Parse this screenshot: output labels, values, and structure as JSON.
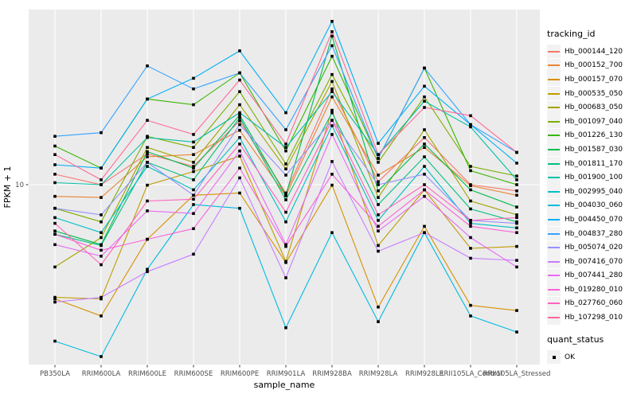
{
  "figure": {
    "x_axis": {
      "label": "sample_name"
    },
    "y_axis": {
      "label": "FPKM + 1",
      "tick_labels": [
        "10"
      ]
    }
  },
  "legend": {
    "tracking_title": "tracking_id",
    "quant_title": "quant_status",
    "quant_items": [
      "OK"
    ]
  },
  "colors": {
    "panel_bg": "#EBEBEB",
    "grid": "#FFFFFF",
    "marker": "#000000",
    "tick_text": "#4D4D4D",
    "tick_mark": "#333333",
    "legend_key_bg": "#F2F2F2"
  },
  "chart_data": {
    "type": "line",
    "title": "",
    "xlabel": "sample_name",
    "ylabel": "FPKM + 1",
    "y_scale": "log10",
    "y_ticks": [
      10
    ],
    "ylim": [
      1.5,
      60
    ],
    "grid": "major-only",
    "legend_position": "right",
    "marker": "filled-square-black",
    "categories": [
      "PB350LA",
      "RRIM600LA",
      "RRIM600LE",
      "RRIM600SE",
      "RRIM600PE",
      "RRIM901LA",
      "RRIM928BA",
      "RRIM928LA",
      "RRIM928LE",
      "RRII105LA_Control",
      "RRII105LA_Stressed"
    ],
    "series": [
      {
        "name": "Hb_000144_120",
        "color": "#F8766D",
        "values": [
          11.1,
          10.0,
          13.6,
          12.0,
          18.9,
          9.2,
          26.0,
          10.3,
          16.0,
          10.0,
          9.4
        ]
      },
      {
        "name": "Hb_000152_700",
        "color": "#EA8331",
        "values": [
          8.9,
          8.8,
          13.2,
          13.5,
          17.2,
          8.95,
          24.0,
          11.0,
          14.5,
          9.9,
          9.0
        ]
      },
      {
        "name": "Hb_000157_070",
        "color": "#D89000",
        "values": [
          3.2,
          2.7,
          5.8,
          9.0,
          9.2,
          4.6,
          9.95,
          2.95,
          6.6,
          3.0,
          2.85
        ]
      },
      {
        "name": "Hb_000535_050",
        "color": "#C09B00",
        "values": [
          3.25,
          3.2,
          9.95,
          11.4,
          13.3,
          4.65,
          21.0,
          5.45,
          9.5,
          5.3,
          5.4
        ]
      },
      {
        "name": "Hb_000683_050",
        "color": "#A3A500",
        "values": [
          4.4,
          5.9,
          14.5,
          12.5,
          22.2,
          11.7,
          28.0,
          8.8,
          17.3,
          8.5,
          7.4
        ]
      },
      {
        "name": "Hb_001097_040",
        "color": "#7CAE00",
        "values": [
          7.9,
          6.9,
          16.2,
          14.5,
          25.3,
          12.3,
          30.0,
          12.5,
          24.0,
          12.0,
          10.9
        ]
      },
      {
        "name": "Hb_001226_130",
        "color": "#39B600",
        "values": [
          14.7,
          11.8,
          23.5,
          22.2,
          30.5,
          14.0,
          36.0,
          13.0,
          32.0,
          11.5,
          10.0
        ]
      },
      {
        "name": "Hb_001587_030",
        "color": "#00BB4E",
        "values": [
          6.3,
          5.5,
          13.9,
          11.8,
          20.0,
          9.0,
          44.0,
          9.4,
          15.0,
          9.5,
          8.0
        ]
      },
      {
        "name": "Hb_001811_170",
        "color": "#00BF7D",
        "values": [
          6.1,
          5.45,
          12.5,
          10.5,
          19.5,
          8.6,
          20.5,
          8.2,
          13.2,
          7.85,
          6.9
        ]
      },
      {
        "name": "Hb_001900_100",
        "color": "#00C1A3",
        "values": [
          10.2,
          10.0,
          16.0,
          15.3,
          20.5,
          14.5,
          25.3,
          13.5,
          23.0,
          17.8,
          10.5
        ]
      },
      {
        "name": "Hb_002995_040",
        "color": "#00BFC4",
        "values": [
          7.2,
          6.2,
          12.0,
          9.5,
          16.0,
          6.9,
          18.0,
          7.0,
          12.0,
          6.8,
          6.5
        ]
      },
      {
        "name": "Hb_004030_060",
        "color": "#00BAE0",
        "values": [
          2.1,
          1.8,
          4.3,
          8.2,
          7.9,
          2.4,
          6.2,
          2.55,
          6.2,
          2.7,
          2.3
        ]
      },
      {
        "name": "Hb_004450_070",
        "color": "#00B0F6",
        "values": [
          12.2,
          11.8,
          23.5,
          28.9,
          38.0,
          20.5,
          51.0,
          15.1,
          26.7,
          18.2,
          12.4
        ]
      },
      {
        "name": "Hb_004837_280",
        "color": "#35A2FF",
        "values": [
          16.2,
          16.8,
          32.7,
          26.0,
          30.5,
          17.3,
          40.0,
          13.0,
          32.0,
          18.2,
          13.8
        ]
      },
      {
        "name": "Hb_005074_020",
        "color": "#9590FF",
        "values": [
          7.9,
          7.4,
          12.5,
          9.0,
          18.2,
          11.0,
          19.0,
          10.0,
          11.1,
          7.0,
          6.8
        ]
      },
      {
        "name": "Hb_007416_070",
        "color": "#C77CFF",
        "values": [
          3.1,
          3.25,
          4.2,
          5.0,
          10.7,
          3.95,
          12.6,
          5.15,
          6.2,
          4.8,
          4.7
        ]
      },
      {
        "name": "Hb_007441_280",
        "color": "#E76BF3",
        "values": [
          5.5,
          4.9,
          7.7,
          7.5,
          14.0,
          5.5,
          16.5,
          6.3,
          8.9,
          5.9,
          4.4
        ]
      },
      {
        "name": "Hb_019280_010",
        "color": "#FA62DB",
        "values": [
          6.1,
          5.2,
          5.8,
          6.45,
          11.8,
          5.4,
          11.1,
          6.6,
          9.5,
          6.6,
          6.2
        ]
      },
      {
        "name": "Hb_027760_060",
        "color": "#FF62BC",
        "values": [
          6.8,
          4.5,
          8.5,
          8.65,
          15.0,
          7.6,
          19.0,
          7.4,
          10.0,
          7.0,
          7.2
        ]
      },
      {
        "name": "Hb_107298_010",
        "color": "#FF6A98",
        "values": [
          13.5,
          10.5,
          19.0,
          16.5,
          28.4,
          15.0,
          46.0,
          13.5,
          21.6,
          19.9,
          13.8
        ]
      }
    ]
  }
}
